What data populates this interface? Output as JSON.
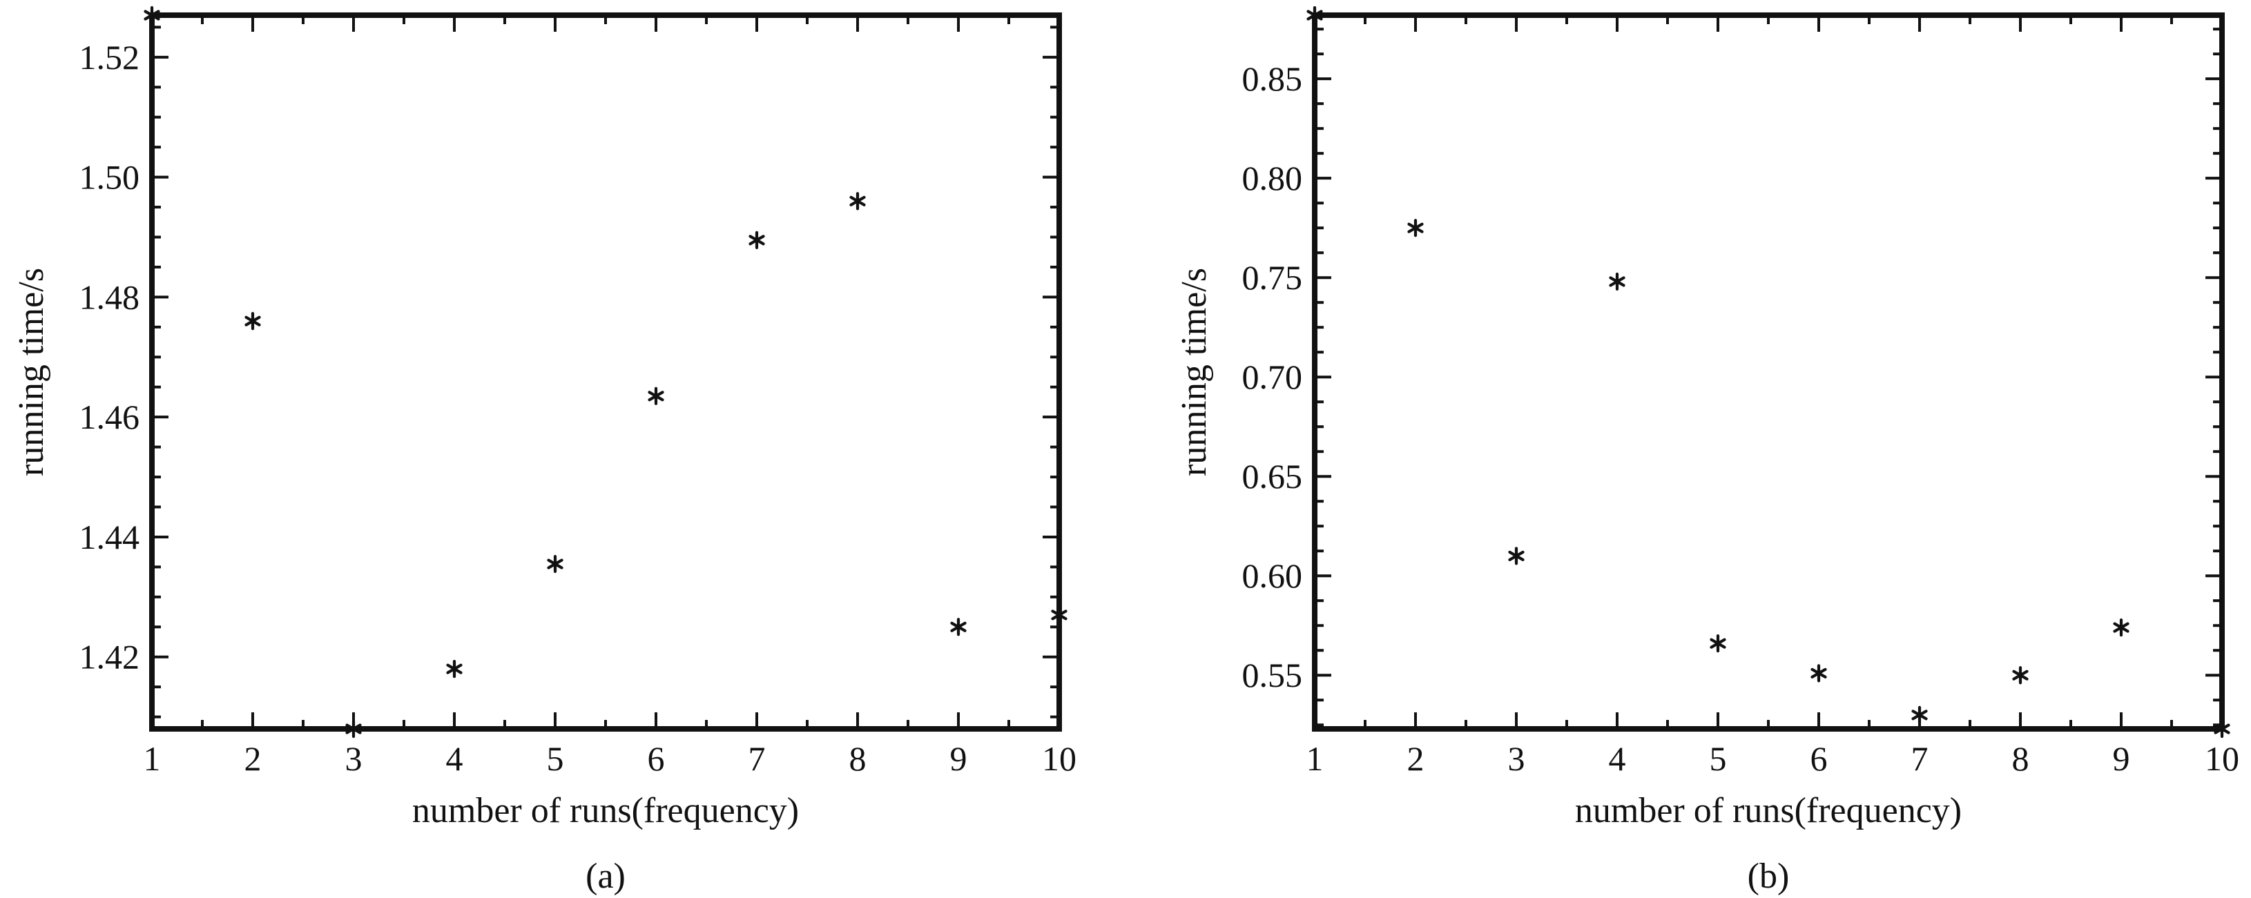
{
  "chart_data": [
    {
      "type": "scatter",
      "panel_label": "(a)",
      "xlabel": "number of runs(frequency)",
      "ylabel": "running time/s",
      "x": [
        1,
        2,
        3,
        4,
        5,
        6,
        7,
        8,
        9,
        10
      ],
      "y": [
        1.527,
        1.476,
        1.408,
        1.418,
        1.4355,
        1.4635,
        1.4895,
        1.496,
        1.425,
        1.427
      ],
      "xlim": [
        1,
        10
      ],
      "ylim": [
        1.408,
        1.527
      ],
      "xticks": [
        1,
        2,
        3,
        4,
        5,
        6,
        7,
        8,
        9,
        10
      ],
      "xtick_labels": [
        "1",
        "2",
        "3",
        "4",
        "5",
        "6",
        "7",
        "8",
        "9",
        "10"
      ],
      "yticks": [
        1.42,
        1.44,
        1.46,
        1.48,
        1.5,
        1.52
      ],
      "ytick_labels": [
        "1.42",
        "1.44",
        "1.46",
        "1.48",
        "1.50",
        "1.52"
      ],
      "marker": "*",
      "grid": false,
      "color": "#111111"
    },
    {
      "type": "scatter",
      "panel_label": "(b)",
      "xlabel": "number of runs(frequency)",
      "ylabel": "running time/s",
      "x": [
        1,
        2,
        3,
        4,
        5,
        6,
        7,
        8,
        9,
        10
      ],
      "y": [
        0.882,
        0.775,
        0.61,
        0.748,
        0.566,
        0.551,
        0.53,
        0.55,
        0.574,
        0.523
      ],
      "xlim": [
        1,
        10
      ],
      "ylim": [
        0.523,
        0.882
      ],
      "xticks": [
        1,
        2,
        3,
        4,
        5,
        6,
        7,
        8,
        9,
        10
      ],
      "xtick_labels": [
        "1",
        "2",
        "3",
        "4",
        "5",
        "6",
        "7",
        "8",
        "9",
        "10"
      ],
      "yticks": [
        0.55,
        0.6,
        0.65,
        0.7,
        0.75,
        0.8,
        0.85
      ],
      "ytick_labels": [
        "0.55",
        "0.60",
        "0.65",
        "0.70",
        "0.75",
        "0.80",
        "0.85"
      ],
      "marker": "*",
      "grid": false,
      "color": "#111111"
    }
  ]
}
